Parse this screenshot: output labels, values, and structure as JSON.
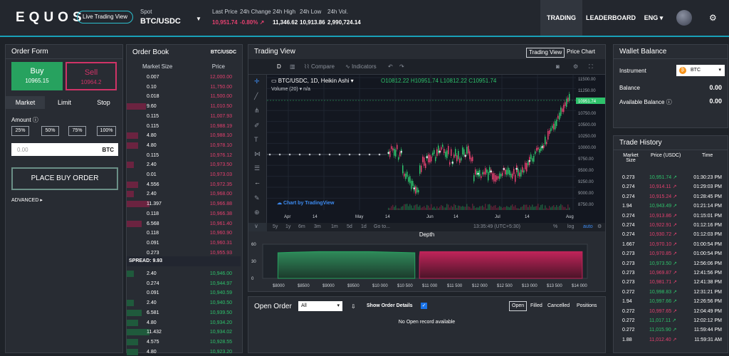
{
  "header": {
    "logo": "EQUOS",
    "live_label": "Live Trading View",
    "spot_label": "Spot",
    "pair": "BTC/USDC",
    "stats": [
      {
        "label": "Last Price",
        "value": "10,951.74",
        "tone": "red"
      },
      {
        "label": "24h Change",
        "value": "-0.80% ↗",
        "tone": "red"
      },
      {
        "label": "24h High",
        "value": "11,346.62",
        "tone": "white"
      },
      {
        "label": "24h Low",
        "value": "10,913.86",
        "tone": "white"
      },
      {
        "label": "24h Vol.",
        "value": "2,990,724.14",
        "tone": "white"
      }
    ],
    "nav": {
      "trading": "TRADING",
      "leaderboard": "LEADERBOARD",
      "lang": "ENG ▾"
    }
  },
  "order_form": {
    "title": "Order Form",
    "buy_label": "Buy",
    "buy_price": "10965.15",
    "sell_label": "Sell",
    "sell_price": "10964.2",
    "tabs": [
      "Market",
      "Limit",
      "Stop"
    ],
    "amount_label": "Amount",
    "percents": [
      "25%",
      "50%",
      "75%",
      "100%"
    ],
    "amount_placeholder": "0.00",
    "amount_currency": "BTC",
    "place_button": "PLACE BUY ORDER",
    "advanced": "ADVANCED ▸"
  },
  "order_book": {
    "title": "Order Book",
    "pair": "BTC/USDC",
    "col_size": "Market Size",
    "col_price": "Price",
    "asks": [
      {
        "size": "0.007",
        "price": "12,000.00",
        "depth": 0.0
      },
      {
        "size": "0.10",
        "price": "11,750.00",
        "depth": 0.0
      },
      {
        "size": "0.018",
        "price": "11,500.00",
        "depth": 0.0
      },
      {
        "size": "9.60",
        "price": "11,010.50",
        "depth": 0.17
      },
      {
        "size": "0.115",
        "price": "11,007.93",
        "depth": 0.0
      },
      {
        "size": "0.115",
        "price": "10,988.19",
        "depth": 0.0
      },
      {
        "size": "4.80",
        "price": "10,988.10",
        "depth": 0.1
      },
      {
        "size": "4.80",
        "price": "10,978.10",
        "depth": 0.1
      },
      {
        "size": "0.115",
        "price": "10,976.12",
        "depth": 0.0
      },
      {
        "size": "2.40",
        "price": "10,973.50",
        "depth": 0.06
      },
      {
        "size": "0.01",
        "price": "10,973.03",
        "depth": 0.0
      },
      {
        "size": "4.556",
        "price": "10,972.35",
        "depth": 0.1
      },
      {
        "size": "2.40",
        "price": "10,968.00",
        "depth": 0.06
      },
      {
        "size": "11.397",
        "price": "10,966.88",
        "depth": 0.2
      },
      {
        "size": "0.118",
        "price": "10,966.38",
        "depth": 0.0
      },
      {
        "size": "6.568",
        "price": "10,961.40",
        "depth": 0.13
      },
      {
        "size": "0.118",
        "price": "10,960.90",
        "depth": 0.0
      },
      {
        "size": "0.091",
        "price": "10,960.31",
        "depth": 0.0
      },
      {
        "size": "0.273",
        "price": "10,955.93",
        "depth": 0.0
      }
    ],
    "spread": "SPREAD: 9.93",
    "bids": [
      {
        "size": "2.40",
        "price": "10,946.00",
        "depth": 0.06
      },
      {
        "size": "0.274",
        "price": "10,944.97",
        "depth": 0.0
      },
      {
        "size": "0.091",
        "price": "10,940.59",
        "depth": 0.0
      },
      {
        "size": "2.40",
        "price": "10,940.50",
        "depth": 0.06
      },
      {
        "size": "6.581",
        "price": "10,939.50",
        "depth": 0.13
      },
      {
        "size": "4.80",
        "price": "10,934.20",
        "depth": 0.1
      },
      {
        "size": "11.432",
        "price": "10,934.02",
        "depth": 0.2
      },
      {
        "size": "4.575",
        "price": "10,928.55",
        "depth": 0.1
      },
      {
        "size": "4.80",
        "price": "10,923.20",
        "depth": 0.1
      }
    ]
  },
  "trading_view": {
    "title": "Trading View",
    "tab_tv": "Trading View",
    "tab_price": "Price Chart",
    "toolbar": {
      "d": "D",
      "compare": "Compare",
      "indicators": "Indicators"
    },
    "legend": "BTC/USDC, 1D, Heikin Ashi ▾",
    "ohlc": "O10812.22 H10951.74 L10812.22 C10951.74",
    "volume": "Volume (20) ▾  n/a",
    "watermark": "Chart by TradingView",
    "last_price_tag": "10951.74",
    "y_ticks": [
      "11500.00",
      "11250.00",
      "11000.00",
      "10750.00",
      "10500.00",
      "10250.00",
      "10000.00",
      "9750.00",
      "9500.00",
      "9250.00",
      "9000.00",
      "8750.00"
    ],
    "x_ticks": [
      "Apr",
      "14",
      "May",
      "14",
      "Jun",
      "14",
      "Jul",
      "14",
      "Aug"
    ],
    "ranges": [
      "5y",
      "1y",
      "6m",
      "3m",
      "1m",
      "5d",
      "1d",
      "Go to..."
    ],
    "clock": "13:35:49 (UTC+5:30)",
    "scale_opts": [
      "%",
      "log",
      "auto"
    ],
    "depth_title": "Depth",
    "depth_y": [
      "60",
      "30",
      "0"
    ],
    "depth_x": [
      "$8000",
      "$8500",
      "$9000",
      "$9500",
      "$10 000",
      "$10 500",
      "$11 000",
      "$11 500",
      "$12 000",
      "$12 500",
      "$13 000",
      "$13 500",
      "$14 000"
    ]
  },
  "chart_data": {
    "type": "area",
    "title": "Depth",
    "series": [
      {
        "name": "",
        "color": "#27a25f",
        "x": [
          8200,
          8500,
          9000,
          9500,
          10000,
          10500,
          10900
        ],
        "values": [
          45,
          46,
          47,
          47,
          47,
          46,
          45
        ]
      },
      {
        "name": "",
        "color": "#c0245a",
        "x": [
          10990,
          11000,
          11500,
          12000,
          12500,
          13000,
          13500,
          14200
        ],
        "values": [
          38,
          47,
          47,
          47,
          47,
          47,
          47,
          47
        ]
      }
    ],
    "xlim": [
      7900,
      14300
    ],
    "ylim": [
      0,
      60
    ]
  },
  "open_order": {
    "title": "Open Order",
    "filter": "All",
    "show_details": "Show Order Details",
    "tabs": [
      "Open",
      "Filled",
      "Cancelled",
      "Positions"
    ],
    "empty": "No Open record available"
  },
  "wallet": {
    "title": "Wallet Balance",
    "instrument_label": "Instrument",
    "instrument": "BTC",
    "balance_label": "Balance",
    "balance": "0.00",
    "available_label": "Available Balance",
    "available": "0.00"
  },
  "trade_history": {
    "title": "Trade History",
    "col_size": "Market Size",
    "col_price": "Price (USDC)",
    "col_time": "Time",
    "rows": [
      {
        "size": "0.273",
        "price": "10,951.74 ↗",
        "time": "01:30:23 PM",
        "tone": "green"
      },
      {
        "size": "0.274",
        "price": "10,914.11 ↗",
        "time": "01:29:03 PM",
        "tone": "red"
      },
      {
        "size": "0.274",
        "price": "10,915.24 ↗",
        "time": "01:28:45 PM",
        "tone": "red"
      },
      {
        "size": "1.94",
        "price": "10,943.49 ↗",
        "time": "01:21:14 PM",
        "tone": "green"
      },
      {
        "size": "0.274",
        "price": "10,913.86 ↗",
        "time": "01:15:01 PM",
        "tone": "red"
      },
      {
        "size": "0.274",
        "price": "10,922.91 ↗",
        "time": "01:12:16 PM",
        "tone": "red"
      },
      {
        "size": "0.274",
        "price": "10,930.72 ↗",
        "time": "01:12:03 PM",
        "tone": "red"
      },
      {
        "size": "1.667",
        "price": "10,970.10 ↗",
        "time": "01:00:54 PM",
        "tone": "red"
      },
      {
        "size": "0.273",
        "price": "10,970.85 ↗",
        "time": "01:00:54 PM",
        "tone": "red"
      },
      {
        "size": "0.273",
        "price": "10,973.50 ↗",
        "time": "12:56:06 PM",
        "tone": "green"
      },
      {
        "size": "0.273",
        "price": "10,969.87 ↗",
        "time": "12:41:56 PM",
        "tone": "red"
      },
      {
        "size": "0.273",
        "price": "10,981.71 ↗",
        "time": "12:41:38 PM",
        "tone": "red"
      },
      {
        "size": "0.272",
        "price": "10,998.83 ↗",
        "time": "12:31:21 PM",
        "tone": "green"
      },
      {
        "size": "1.94",
        "price": "10,997.66 ↗",
        "time": "12:26:56 PM",
        "tone": "green"
      },
      {
        "size": "0.272",
        "price": "10,997.65 ↗",
        "time": "12:04:49 PM",
        "tone": "red"
      },
      {
        "size": "0.272",
        "price": "11,017.11 ↗",
        "time": "12:02:12 PM",
        "tone": "green"
      },
      {
        "size": "0.272",
        "price": "11,015.90 ↗",
        "time": "11:59:44 PM",
        "tone": "green"
      },
      {
        "size": "1.88",
        "price": "11,012.40 ↗",
        "time": "11:59:31 AM",
        "tone": "red"
      }
    ]
  }
}
